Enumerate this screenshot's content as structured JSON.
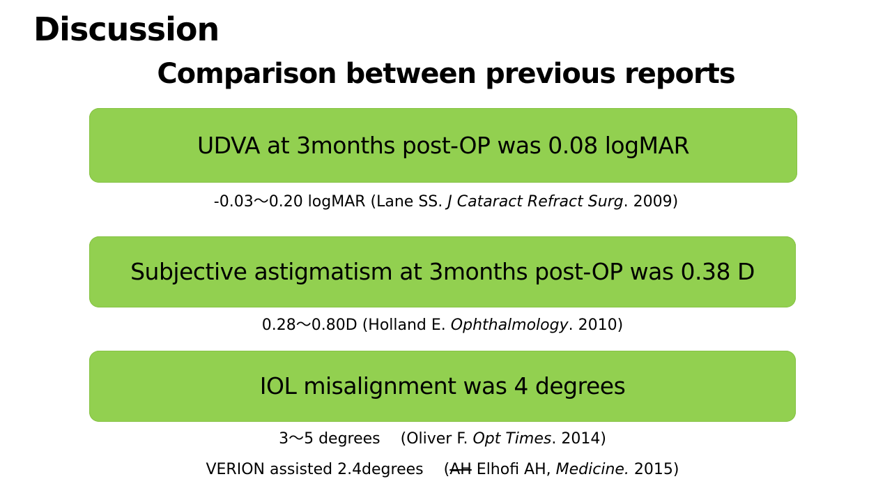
{
  "title": "Discussion",
  "subtitle": "Comparison between previous reports",
  "findings": [
    {
      "text": "UDVA at 3months post-OP was 0.08 logMAR",
      "references": [
        {
          "before": "-0.03～0.20 logMAR (Lane SS. ",
          "journal": "J Cataract Refract Surg",
          "after": ". 2009)"
        }
      ]
    },
    {
      "text": "Subjective astigmatism at 3months post-OP was 0.38 D",
      "references": [
        {
          "before": "0.28～0.80D  (Holland E. ",
          "journal": "Ophthalmology",
          "after": ". 2010)"
        }
      ]
    },
    {
      "text": "IOL misalignment was 4 degrees",
      "references": [
        {
          "before": "3～5 degrees　 (Oliver F. ",
          "journal": "Opt Times",
          "after": ". 2014)"
        },
        {
          "before": "VERION assisted 2.4degrees　 (",
          "strikethrough": "AH",
          "middle": " Elhofi AH, ",
          "journal": "Medicine.",
          "after": " 2015)"
        }
      ]
    }
  ],
  "colors": {
    "box_fill": "#92d050",
    "text": "#000000",
    "background": "#ffffff"
  }
}
